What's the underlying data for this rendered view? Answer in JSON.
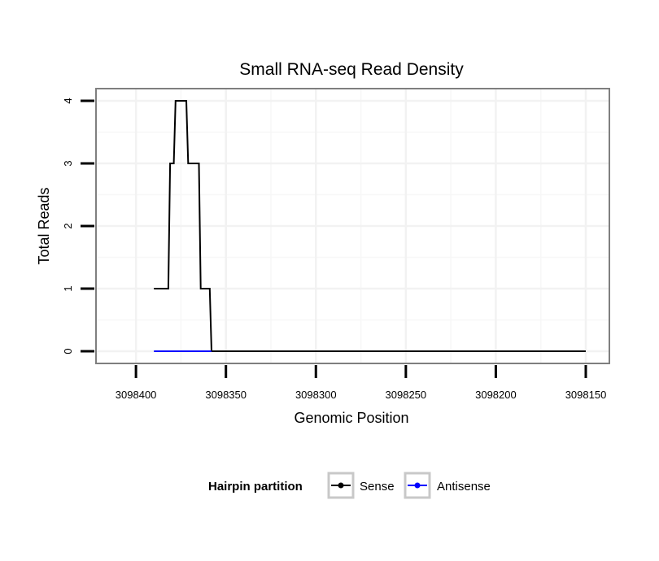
{
  "chart_data": {
    "type": "line",
    "title": "Small RNA-seq Read Density",
    "xlabel": "Genomic Position",
    "ylabel": "Total Reads",
    "xlim": [
      3098410,
      3098150
    ],
    "x_reversed": true,
    "ylim": [
      0,
      4
    ],
    "x_ticks": [
      3098400,
      3098350,
      3098300,
      3098250,
      3098200,
      3098150
    ],
    "x_tick_labels": [
      "3098400",
      "3098350",
      "3098300",
      "3098250",
      "3098200",
      "3098150"
    ],
    "y_ticks": [
      0,
      1,
      2,
      3,
      4
    ],
    "y_tick_labels": [
      "0",
      "1",
      "2",
      "3",
      "4"
    ],
    "grid": true,
    "legend": {
      "title": "Hairpin partition",
      "position": "bottom"
    },
    "series": [
      {
        "name": "Sense",
        "color": "#000000",
        "x": [
          3098390,
          3098382,
          3098381,
          3098379,
          3098378,
          3098372,
          3098371,
          3098365,
          3098364,
          3098359,
          3098358,
          3098357,
          3098150
        ],
        "y": [
          1,
          1,
          3,
          3,
          4,
          4,
          3,
          3,
          1,
          1,
          0,
          0,
          0
        ]
      },
      {
        "name": "Antisense",
        "color": "#0000ff",
        "x": [
          3098390,
          3098358
        ],
        "y": [
          0,
          0
        ]
      }
    ]
  }
}
